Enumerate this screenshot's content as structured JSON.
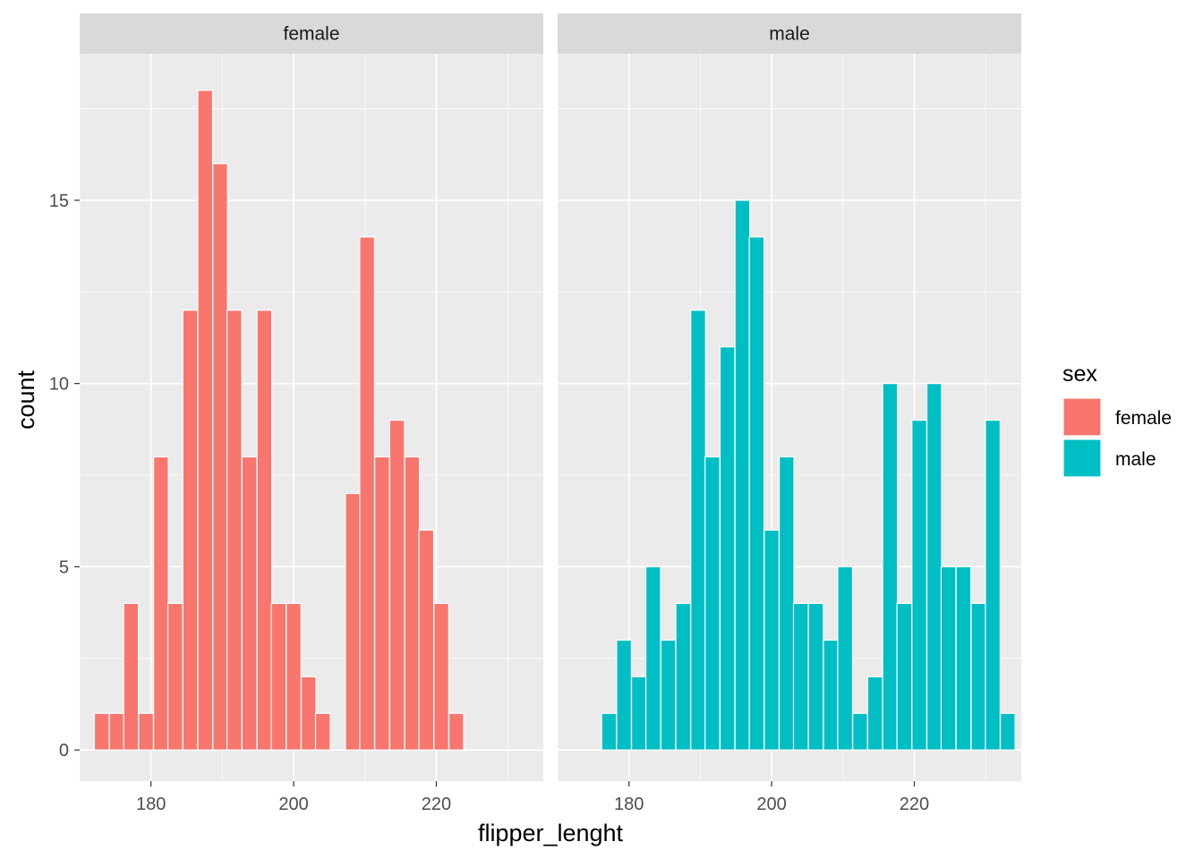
{
  "chart_data": {
    "type": "bar",
    "subtype": "histogram-faceted",
    "title": "",
    "xlabel": "flipper_lenght",
    "ylabel": "count",
    "xlim": [
      170,
      235
    ],
    "ylim": [
      -0.85,
      19.0
    ],
    "x_ticks": [
      180,
      200,
      220
    ],
    "y_ticks": [
      0,
      5,
      10,
      15
    ],
    "bin_width": 2.07,
    "grid": true,
    "legend": {
      "title": "sex",
      "position": "right",
      "entries": [
        {
          "label": "female",
          "color": "#F8766D"
        },
        {
          "label": "male",
          "color": "#00BFC4"
        }
      ]
    },
    "facets": [
      {
        "label": "female",
        "color": "#F8766D",
        "bins": [
          {
            "x": 173.1,
            "count": 1
          },
          {
            "x": 175.2,
            "count": 1
          },
          {
            "x": 177.2,
            "count": 4
          },
          {
            "x": 179.3,
            "count": 1
          },
          {
            "x": 181.4,
            "count": 8
          },
          {
            "x": 183.4,
            "count": 4
          },
          {
            "x": 185.5,
            "count": 12
          },
          {
            "x": 187.6,
            "count": 18
          },
          {
            "x": 189.7,
            "count": 16
          },
          {
            "x": 191.7,
            "count": 12
          },
          {
            "x": 193.8,
            "count": 8
          },
          {
            "x": 195.9,
            "count": 12
          },
          {
            "x": 197.9,
            "count": 4
          },
          {
            "x": 200.0,
            "count": 4
          },
          {
            "x": 202.1,
            "count": 2
          },
          {
            "x": 204.1,
            "count": 1
          },
          {
            "x": 208.3,
            "count": 7
          },
          {
            "x": 210.3,
            "count": 14
          },
          {
            "x": 212.4,
            "count": 8
          },
          {
            "x": 214.5,
            "count": 9
          },
          {
            "x": 216.6,
            "count": 8
          },
          {
            "x": 218.6,
            "count": 6
          },
          {
            "x": 220.7,
            "count": 4
          },
          {
            "x": 222.8,
            "count": 1
          }
        ]
      },
      {
        "label": "male",
        "color": "#00BFC4",
        "bins": [
          {
            "x": 177.2,
            "count": 1
          },
          {
            "x": 179.3,
            "count": 3
          },
          {
            "x": 181.4,
            "count": 2
          },
          {
            "x": 183.4,
            "count": 5
          },
          {
            "x": 185.5,
            "count": 3
          },
          {
            "x": 187.6,
            "count": 4
          },
          {
            "x": 189.7,
            "count": 12
          },
          {
            "x": 191.7,
            "count": 8
          },
          {
            "x": 193.8,
            "count": 11
          },
          {
            "x": 195.9,
            "count": 15
          },
          {
            "x": 197.9,
            "count": 14
          },
          {
            "x": 200.0,
            "count": 6
          },
          {
            "x": 202.1,
            "count": 8
          },
          {
            "x": 204.1,
            "count": 4
          },
          {
            "x": 206.2,
            "count": 4
          },
          {
            "x": 208.3,
            "count": 3
          },
          {
            "x": 210.3,
            "count": 5
          },
          {
            "x": 212.4,
            "count": 1
          },
          {
            "x": 214.5,
            "count": 2
          },
          {
            "x": 216.6,
            "count": 10
          },
          {
            "x": 218.6,
            "count": 4
          },
          {
            "x": 220.7,
            "count": 9
          },
          {
            "x": 222.8,
            "count": 10
          },
          {
            "x": 224.8,
            "count": 5
          },
          {
            "x": 226.9,
            "count": 5
          },
          {
            "x": 229.0,
            "count": 4
          },
          {
            "x": 231.0,
            "count": 9
          },
          {
            "x": 233.1,
            "count": 1
          }
        ]
      }
    ]
  }
}
